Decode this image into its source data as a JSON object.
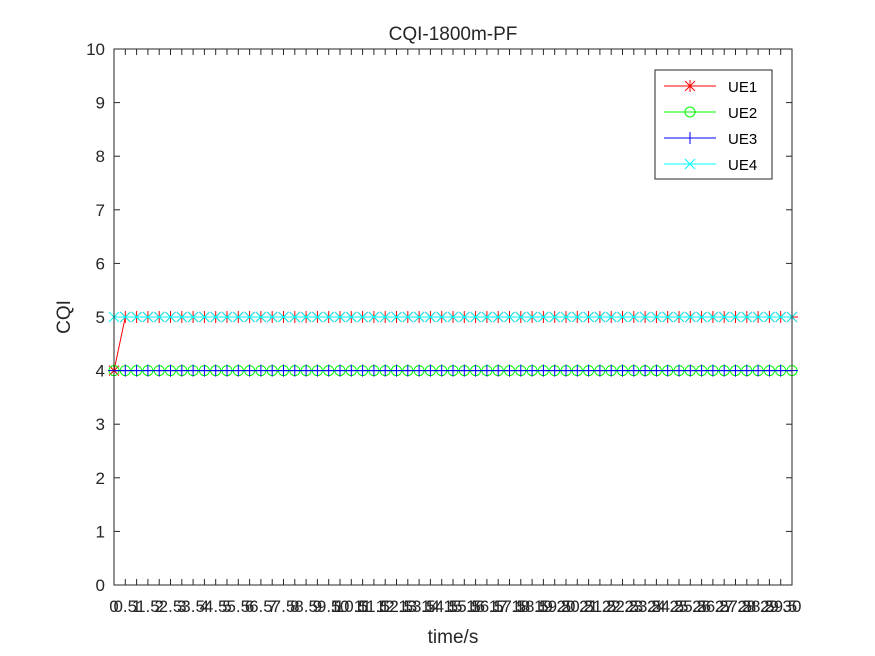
{
  "chart_data": {
    "type": "line",
    "title": "CQI-1800m-PF",
    "xlabel": "time/s",
    "ylabel": "CQI",
    "xlim": [
      0,
      30
    ],
    "ylim": [
      0,
      10
    ],
    "grid": false,
    "legend_position": "top-right",
    "y_ticks": [
      "0",
      "1",
      "2",
      "3",
      "4",
      "5",
      "6",
      "7",
      "8",
      "9",
      "10"
    ],
    "x_ticks": [
      "0",
      "0.5",
      "1",
      "1.5",
      "2",
      "2.5",
      "3",
      "3.5",
      "4",
      "4.5",
      "5",
      "5.5",
      "6",
      "6.5",
      "7",
      "7.5",
      "8",
      "8.5",
      "9",
      "9.5",
      "10",
      "10.5",
      "11",
      "11.5",
      "12",
      "12.5",
      "13",
      "13.5",
      "14",
      "14.5",
      "15",
      "15.5",
      "16",
      "16.5",
      "17",
      "17.5",
      "18",
      "18.5",
      "19",
      "19.5",
      "20",
      "20.5",
      "21",
      "21.5",
      "22",
      "22.5",
      "23",
      "23.5",
      "24",
      "24.5",
      "25",
      "25.5",
      "26",
      "26.5",
      "27",
      "27.5",
      "28",
      "28.5",
      "29",
      "29.5",
      "30"
    ],
    "x": [
      0,
      0.5,
      1,
      1.5,
      2,
      2.5,
      3,
      3.5,
      4,
      4.5,
      5,
      5.5,
      6,
      6.5,
      7,
      7.5,
      8,
      8.5,
      9,
      9.5,
      10,
      10.5,
      11,
      11.5,
      12,
      12.5,
      13,
      13.5,
      14,
      14.5,
      15,
      15.5,
      16,
      16.5,
      17,
      17.5,
      18,
      18.5,
      19,
      19.5,
      20,
      20.5,
      21,
      21.5,
      22,
      22.5,
      23,
      23.5,
      24,
      24.5,
      25,
      25.5,
      26,
      26.5,
      27,
      27.5,
      28,
      28.5,
      29,
      29.5,
      30
    ],
    "series": [
      {
        "name": "UE1",
        "color": "#ff0000",
        "marker": "asterisk",
        "values": [
          4,
          5,
          5,
          5,
          5,
          5,
          5,
          5,
          5,
          5,
          5,
          5,
          5,
          5,
          5,
          5,
          5,
          5,
          5,
          5,
          5,
          5,
          5,
          5,
          5,
          5,
          5,
          5,
          5,
          5,
          5,
          5,
          5,
          5,
          5,
          5,
          5,
          5,
          5,
          5,
          5,
          5,
          5,
          5,
          5,
          5,
          5,
          5,
          5,
          5,
          5,
          5,
          5,
          5,
          5,
          5,
          5,
          5,
          5,
          5,
          5
        ]
      },
      {
        "name": "UE2",
        "color": "#00ff00",
        "marker": "circle",
        "values": [
          4,
          4,
          4,
          4,
          4,
          4,
          4,
          4,
          4,
          4,
          4,
          4,
          4,
          4,
          4,
          4,
          4,
          4,
          4,
          4,
          4,
          4,
          4,
          4,
          4,
          4,
          4,
          4,
          4,
          4,
          4,
          4,
          4,
          4,
          4,
          4,
          4,
          4,
          4,
          4,
          4,
          4,
          4,
          4,
          4,
          4,
          4,
          4,
          4,
          4,
          4,
          4,
          4,
          4,
          4,
          4,
          4,
          4,
          4,
          4,
          4
        ]
      },
      {
        "name": "UE3",
        "color": "#0000ff",
        "marker": "plus",
        "values": [
          4,
          4,
          4,
          4,
          4,
          4,
          4,
          4,
          4,
          4,
          4,
          4,
          4,
          4,
          4,
          4,
          4,
          4,
          4,
          4,
          4,
          4,
          4,
          4,
          4,
          4,
          4,
          4,
          4,
          4,
          4,
          4,
          4,
          4,
          4,
          4,
          4,
          4,
          4,
          4,
          4,
          4,
          4,
          4,
          4,
          4,
          4,
          4,
          4,
          4,
          4,
          4,
          4,
          4,
          4,
          4,
          4,
          4,
          4,
          4,
          4
        ]
      },
      {
        "name": "UE4",
        "color": "#00ffff",
        "marker": "cross",
        "values": [
          5,
          5,
          5,
          5,
          5,
          5,
          5,
          5,
          5,
          5,
          5,
          5,
          5,
          5,
          5,
          5,
          5,
          5,
          5,
          5,
          5,
          5,
          5,
          5,
          5,
          5,
          5,
          5,
          5,
          5,
          5,
          5,
          5,
          5,
          5,
          5,
          5,
          5,
          5,
          5,
          5,
          5,
          5,
          5,
          5,
          5,
          5,
          5,
          5,
          5,
          5,
          5,
          5,
          5,
          5,
          5,
          5,
          5,
          5,
          5,
          5
        ]
      }
    ]
  }
}
